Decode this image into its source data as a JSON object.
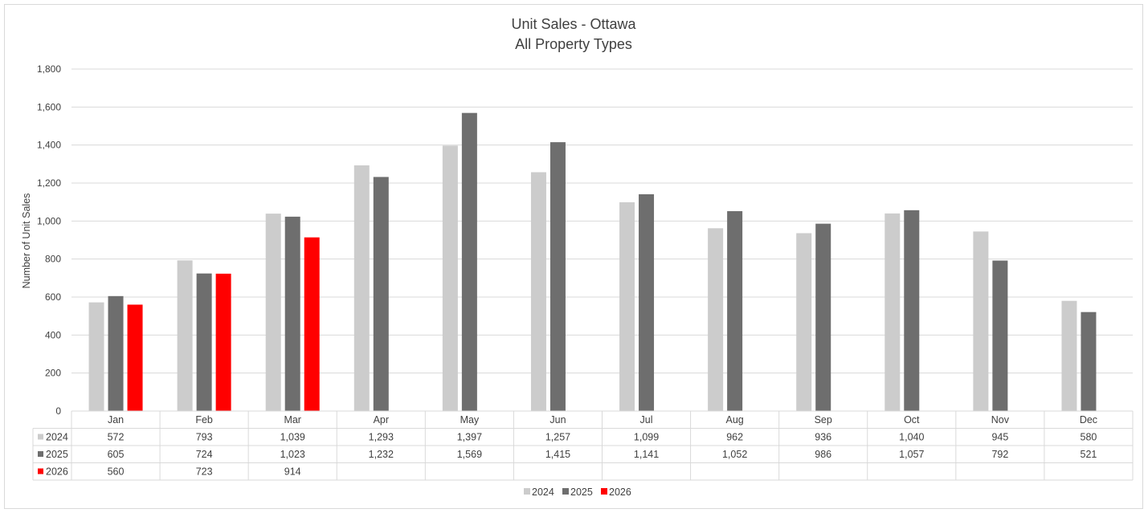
{
  "chart_data": {
    "type": "bar",
    "title": "Unit Sales - Ottawa",
    "subtitle": "All Property Types",
    "ylabel": "Number of Unit Sales",
    "ylim": [
      0,
      1800
    ],
    "ytick_step": 200,
    "ytick_labels": [
      "0",
      "200",
      "400",
      "600",
      "800",
      "1,000",
      "1,200",
      "1,400",
      "1,600",
      "1,800"
    ],
    "grid": true,
    "legend_position": "bottom",
    "categories": [
      "Jan",
      "Feb",
      "Mar",
      "Apr",
      "May",
      "Jun",
      "Jul",
      "Aug",
      "Sep",
      "Oct",
      "Nov",
      "Dec"
    ],
    "series": [
      {
        "name": "2024",
        "color": "#cccccc",
        "values": [
          572,
          793,
          1039,
          1293,
          1397,
          1257,
          1099,
          962,
          936,
          1040,
          945,
          580
        ],
        "labels": [
          "572",
          "793",
          "1,039",
          "1,293",
          "1,397",
          "1,257",
          "1,099",
          "962",
          "936",
          "1,040",
          "945",
          "580"
        ]
      },
      {
        "name": "2025",
        "color": "#6e6e6e",
        "values": [
          605,
          724,
          1023,
          1232,
          1569,
          1415,
          1141,
          1052,
          986,
          1057,
          792,
          521
        ],
        "labels": [
          "605",
          "724",
          "1,023",
          "1,232",
          "1,569",
          "1,415",
          "1,141",
          "1,052",
          "986",
          "1,057",
          "792",
          "521"
        ]
      },
      {
        "name": "2026",
        "color": "#ff0000",
        "values": [
          560,
          723,
          914,
          null,
          null,
          null,
          null,
          null,
          null,
          null,
          null,
          null
        ],
        "labels": [
          "560",
          "723",
          "914",
          "",
          "",
          "",
          "",
          "",
          "",
          "",
          "",
          ""
        ]
      }
    ]
  }
}
